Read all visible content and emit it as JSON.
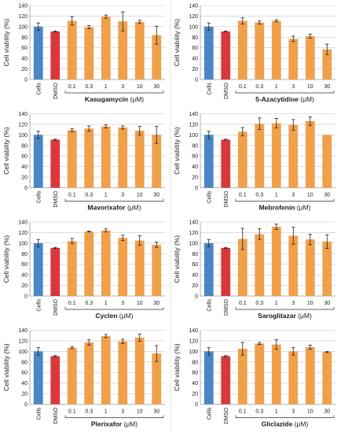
{
  "colors": {
    "cells": "#4a86c5",
    "dmso": "#d9383a",
    "drug": "#f0a04b",
    "axis": "#999999",
    "grid": "#c9c9c9",
    "error": "#222222"
  },
  "unit_suffix": "(μM)",
  "chart_data": [
    {
      "type": "bar",
      "drug": "Kasugamycin",
      "ylabel": "Cell viability (%)",
      "ylim": [
        0,
        140
      ],
      "yticks": [
        0,
        20,
        40,
        60,
        80,
        100,
        120,
        140
      ],
      "grid": true,
      "categories": [
        "Cells",
        "DMSO",
        "0.1",
        "0.3",
        "1",
        "3",
        "10",
        "30"
      ],
      "values": [
        100,
        91,
        111,
        99,
        119,
        110,
        109,
        84
      ],
      "errors": [
        7,
        1,
        8,
        3,
        3,
        18,
        3,
        17
      ]
    },
    {
      "type": "bar",
      "drug": "5-Azacytidine",
      "ylabel": "Cell viability (%)",
      "ylim": [
        0,
        140
      ],
      "yticks": [
        0,
        20,
        40,
        60,
        80,
        100,
        120,
        140
      ],
      "grid": true,
      "categories": [
        "Cells",
        "DMSO",
        "0.1",
        "0.3",
        "1",
        "3",
        "10",
        "30"
      ],
      "values": [
        100,
        91,
        111,
        108,
        111,
        77,
        82,
        57
      ],
      "errors": [
        7,
        1,
        6,
        3,
        2,
        5,
        4,
        10
      ]
    },
    {
      "type": "bar",
      "drug": "Mavorixafor",
      "ylabel": "Cell viability (%)",
      "ylim": [
        0,
        140
      ],
      "yticks": [
        0,
        20,
        40,
        60,
        80,
        100,
        120,
        140
      ],
      "grid": true,
      "categories": [
        "Cells",
        "DMSO",
        "0.1",
        "0.3",
        "1",
        "3",
        "10",
        "30"
      ],
      "values": [
        100,
        91,
        109,
        112,
        116,
        114,
        108,
        100
      ],
      "errors": [
        7,
        1,
        3,
        5,
        3,
        3,
        8,
        16
      ]
    },
    {
      "type": "bar",
      "drug": "Mebrofenin",
      "ylabel": "Cell viability (%)",
      "ylim": [
        0,
        140
      ],
      "yticks": [
        0,
        20,
        40,
        60,
        80,
        100,
        120,
        140
      ],
      "grid": true,
      "categories": [
        "Cells",
        "DMSO",
        "0.1",
        "0.3",
        "1",
        "3",
        "10",
        "30"
      ],
      "values": [
        100,
        91,
        106,
        121,
        122,
        119,
        126,
        100
      ],
      "errors": [
        7,
        1,
        8,
        11,
        9,
        10,
        8,
        0
      ]
    },
    {
      "type": "bar",
      "drug": "Cyclen",
      "ylabel": "Cell viability (%)",
      "ylim": [
        0,
        140
      ],
      "yticks": [
        0,
        20,
        40,
        60,
        80,
        100,
        120,
        140
      ],
      "grid": true,
      "categories": [
        "Cells",
        "DMSO",
        "0.1",
        "0.3",
        "1",
        "3",
        "10",
        "30"
      ],
      "values": [
        100,
        91,
        104,
        122,
        124,
        110,
        105,
        97
      ],
      "errors": [
        7,
        1,
        5,
        1,
        3,
        5,
        9,
        5
      ]
    },
    {
      "type": "bar",
      "drug": "Saroglitazar",
      "ylabel": "Cell viability (%)",
      "ylim": [
        0,
        140
      ],
      "yticks": [
        0,
        20,
        40,
        60,
        80,
        100,
        120,
        140
      ],
      "grid": true,
      "categories": [
        "Cells",
        "DMSO",
        "0.1",
        "0.3",
        "1",
        "3",
        "10",
        "30"
      ],
      "values": [
        100,
        91,
        108,
        117,
        131,
        114,
        107,
        103
      ],
      "errors": [
        7,
        1,
        20,
        10,
        5,
        16,
        10,
        13
      ]
    },
    {
      "type": "bar",
      "drug": "Plerixafor",
      "ylabel": "Cell viability (%)",
      "ylim": [
        0,
        140
      ],
      "yticks": [
        0,
        20,
        40,
        60,
        80,
        100,
        120,
        140
      ],
      "grid": true,
      "categories": [
        "Cells",
        "DMSO",
        "0.1",
        "0.3",
        "1",
        "3",
        "10",
        "30"
      ],
      "values": [
        100,
        91,
        107,
        117,
        129,
        119,
        126,
        96
      ],
      "errors": [
        7,
        1,
        2,
        5,
        3,
        4,
        7,
        15
      ]
    },
    {
      "type": "bar",
      "drug": "Gliclazide",
      "ylabel": "Cell viability (%)",
      "ylim": [
        0,
        140
      ],
      "yticks": [
        0,
        20,
        40,
        60,
        80,
        100,
        120,
        140
      ],
      "grid": true,
      "categories": [
        "Cells",
        "DMSO",
        "0.1",
        "0.3",
        "1",
        "3",
        "10",
        "30"
      ],
      "values": [
        100,
        91,
        105,
        115,
        113,
        100,
        108,
        99
      ],
      "errors": [
        7,
        1,
        12,
        2,
        9,
        7,
        4,
        1
      ]
    }
  ]
}
